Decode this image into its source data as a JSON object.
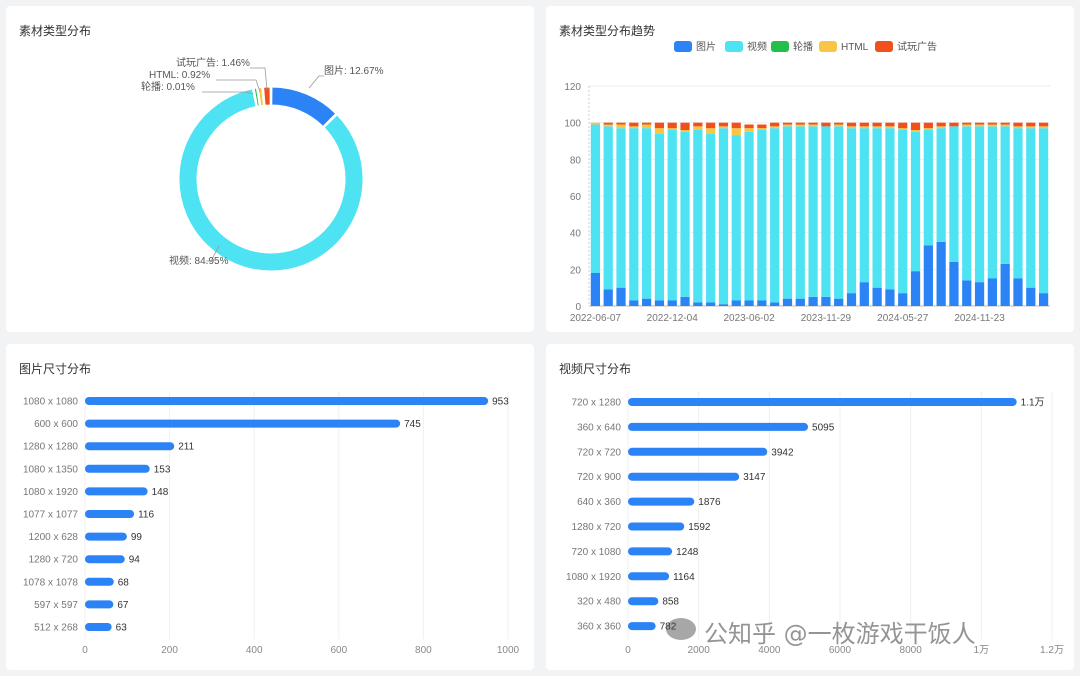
{
  "chart_data": [
    {
      "type": "pie",
      "title": "素材类型分布",
      "slices": [
        {
          "name": "图片",
          "value": 12.67,
          "label": "图片: 12.67%",
          "color": "#2b83f6"
        },
        {
          "name": "视频",
          "value": 84.95,
          "label": "视频: 84.95%",
          "color": "#4de3f2"
        },
        {
          "name": "轮播",
          "value": 0.01,
          "label": "轮播: 0.01%",
          "color": "#22c04a"
        },
        {
          "name": "HTML",
          "value": 0.92,
          "label": "HTML: 0.92%",
          "color": "#f8c545"
        },
        {
          "name": "试玩广告",
          "value": 1.46,
          "label": "试玩广告: 1.46%",
          "color": "#f0511c"
        }
      ]
    },
    {
      "type": "bar",
      "stacked": true,
      "title": "素材类型分布趋势",
      "legend": [
        "图片",
        "视频",
        "轮播",
        "HTML",
        "试玩广告"
      ],
      "colors": [
        "#2b83f6",
        "#4de3f2",
        "#22c04a",
        "#f8c545",
        "#f0511c"
      ],
      "ylim": [
        0,
        120
      ],
      "yticks": [
        0,
        20,
        40,
        60,
        80,
        100,
        120
      ],
      "xtick_labels": [
        "2022-06-07",
        "2022-12-04",
        "2023-06-02",
        "2023-11-29",
        "2024-05-27",
        "2024-11-23"
      ],
      "xtick_positions": [
        0,
        6,
        12,
        18,
        24,
        30
      ],
      "series": [
        {
          "name": "图片",
          "values": [
            18,
            9,
            10,
            3,
            4,
            3,
            3,
            5,
            2,
            2,
            1,
            3,
            3,
            3,
            2,
            4,
            4,
            5,
            5,
            4,
            7,
            13,
            10,
            9,
            7,
            19,
            33,
            35,
            24,
            14,
            13,
            15,
            23,
            15,
            10,
            7
          ]
        },
        {
          "name": "视频",
          "values": [
            81,
            89,
            87,
            94,
            93,
            91,
            93,
            90,
            94,
            92,
            96,
            90,
            92,
            93,
            95,
            94,
            94,
            93,
            93,
            94,
            90,
            84,
            87,
            88,
            89,
            76,
            63,
            62,
            74,
            84,
            85,
            83,
            75,
            82,
            87,
            90
          ]
        },
        {
          "name": "轮播",
          "values": [
            0,
            0,
            0,
            0,
            0,
            0,
            0,
            0,
            0,
            0,
            0,
            0,
            0,
            0,
            0,
            0,
            0,
            0,
            0,
            0,
            0,
            0,
            0,
            0,
            0,
            0,
            0,
            0,
            0,
            0,
            0,
            0,
            0,
            0,
            0,
            0
          ]
        },
        {
          "name": "HTML",
          "values": [
            1,
            1,
            2,
            1,
            2,
            3,
            1,
            1,
            2,
            3,
            1,
            4,
            2,
            1,
            1,
            1,
            1,
            1,
            0,
            1,
            1,
            1,
            1,
            1,
            1,
            1,
            1,
            1,
            0,
            1,
            1,
            1,
            1,
            1,
            1,
            1
          ]
        },
        {
          "name": "试玩广告",
          "values": [
            0,
            1,
            1,
            2,
            1,
            3,
            3,
            4,
            2,
            3,
            2,
            3,
            2,
            2,
            2,
            1,
            1,
            1,
            2,
            1,
            2,
            2,
            2,
            2,
            3,
            4,
            3,
            2,
            2,
            1,
            1,
            1,
            1,
            2,
            2,
            2
          ]
        }
      ]
    },
    {
      "type": "bar",
      "orientation": "horizontal",
      "title": "图片尺寸分布",
      "categories": [
        "1080 x 1080",
        "600 x 600",
        "1280 x 1280",
        "1080 x 1350",
        "1080 x 1920",
        "1077 x 1077",
        "1200 x 628",
        "1280 x 720",
        "1078 x 1078",
        "597 x 597",
        "512 x 268"
      ],
      "values": [
        953,
        745,
        211,
        153,
        148,
        116,
        99,
        94,
        68,
        67,
        63
      ],
      "value_labels": [
        "953",
        "745",
        "211",
        "153",
        "148",
        "116",
        "99",
        "94",
        "68",
        "67",
        "63"
      ],
      "xlim": [
        0,
        1000
      ],
      "xticks": [
        "0",
        "200",
        "400",
        "600",
        "800",
        "1000"
      ],
      "color": "#2b83f6"
    },
    {
      "type": "bar",
      "orientation": "horizontal",
      "title": "视频尺寸分布",
      "categories": [
        "720 x 1280",
        "360 x 640",
        "720 x 720",
        "720 x 900",
        "640 x 360",
        "1280 x 720",
        "720 x 1080",
        "1080 x 1920",
        "320 x 480",
        "360 x 360"
      ],
      "values": [
        11000,
        5095,
        3942,
        3147,
        1876,
        1592,
        1248,
        1164,
        858,
        782
      ],
      "value_labels": [
        "1.1万",
        "5095",
        "3942",
        "3147",
        "1876",
        "1592",
        "1248",
        "1164",
        "858",
        "782"
      ],
      "xlim": [
        0,
        12000
      ],
      "xticks": [
        "0",
        "2000",
        "4000",
        "6000",
        "8000",
        "1万",
        "1.2万"
      ],
      "color": "#2b83f6"
    }
  ],
  "watermark": "公知乎 @一枚游戏干饭人"
}
